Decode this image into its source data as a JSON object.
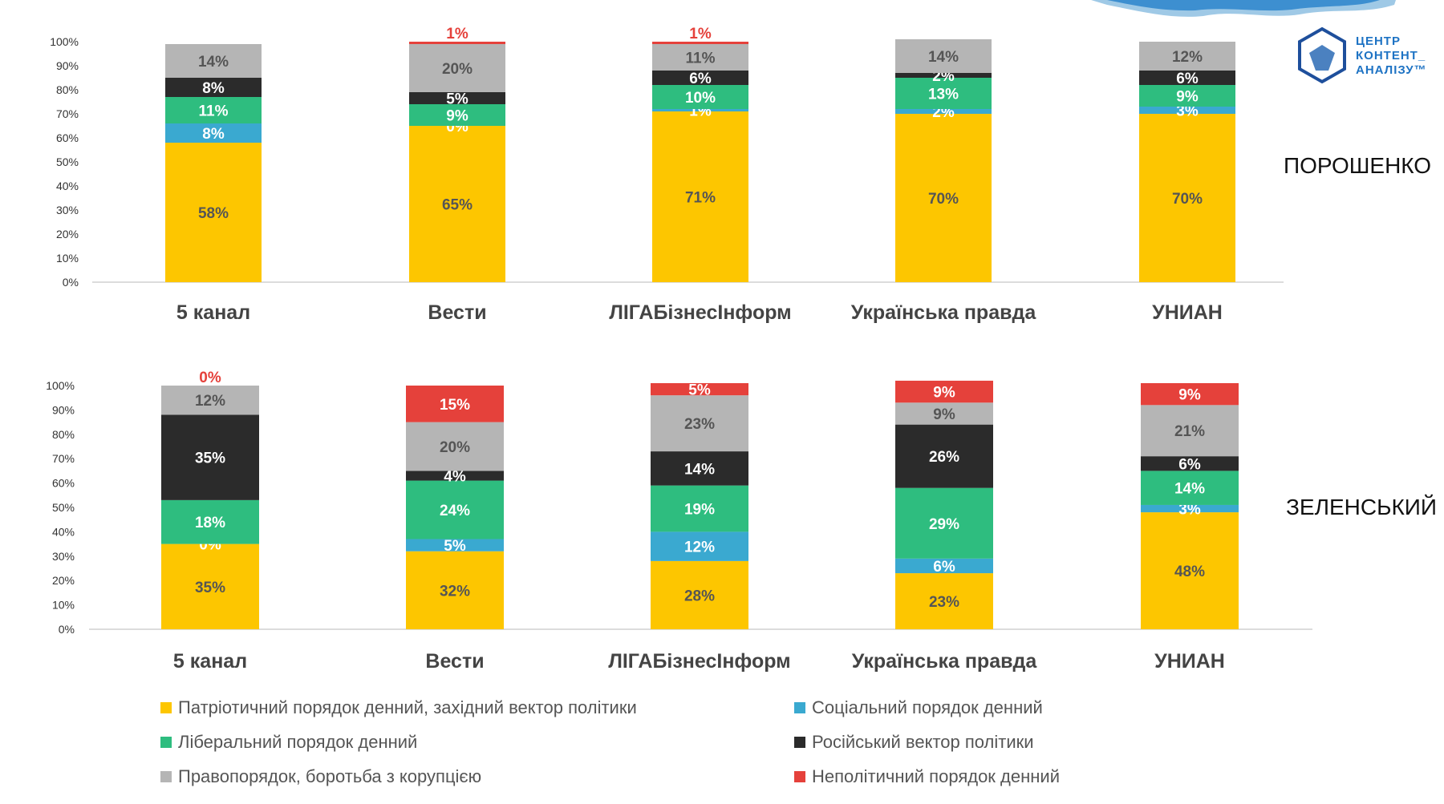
{
  "colors": {
    "patriotic": "#fdc600",
    "social": "#3aa9d0",
    "liberal": "#2ebd7f",
    "russian": "#2b2b2b",
    "law": "#b5b5b5",
    "nonpolitical": "#e5413b"
  },
  "logo": {
    "icon": "shield-logo-icon",
    "lines": [
      "ЦЕНТР",
      "КОНТЕНТ_",
      "АНАЛІЗУ™"
    ]
  },
  "legend": {
    "items": [
      {
        "key": "patriotic",
        "label": "Патріотичний порядок денний, західний вектор політики"
      },
      {
        "key": "social",
        "label": "Соціальний порядок денний"
      },
      {
        "key": "liberal",
        "label": "Ліберальний порядок денний"
      },
      {
        "key": "russian",
        "label": "Російський вектор політики"
      },
      {
        "key": "law",
        "label": "Правопорядок, боротьба з корупцією"
      },
      {
        "key": "nonpolitical",
        "label": "Неполітичний порядок денний"
      }
    ]
  },
  "chart_data": [
    {
      "type": "bar",
      "stacked": true,
      "title": "ПОРОШЕНКО",
      "categories": [
        "5 канал",
        "Вести",
        "ЛІГАБізнесІнформ",
        "Українська правда",
        "УНИАН"
      ],
      "ylim": [
        0,
        100
      ],
      "yticks": [
        "0%",
        "10%",
        "20%",
        "30%",
        "40%",
        "50%",
        "60%",
        "70%",
        "80%",
        "90%",
        "100%"
      ],
      "series": [
        {
          "key": "patriotic",
          "name": "Патріотичний порядок денний, західний вектор політики",
          "values": [
            58,
            65,
            71,
            70,
            70
          ]
        },
        {
          "key": "social",
          "name": "Соціальний порядок денний",
          "values": [
            8,
            0,
            1,
            2,
            3
          ]
        },
        {
          "key": "liberal",
          "name": "Ліберальний порядок денний",
          "values": [
            11,
            9,
            10,
            13,
            9
          ]
        },
        {
          "key": "russian",
          "name": "Російський вектор політики",
          "values": [
            8,
            5,
            6,
            2,
            6
          ]
        },
        {
          "key": "law",
          "name": "Правопорядок, боротьба з корупцією",
          "values": [
            14,
            20,
            11,
            14,
            12
          ]
        },
        {
          "key": "nonpolitical",
          "name": "Неполітичний порядок денний",
          "values": [
            0,
            1,
            1,
            0,
            0
          ]
        }
      ]
    },
    {
      "type": "bar",
      "stacked": true,
      "title": "ЗЕЛЕНСЬКИЙ",
      "categories": [
        "5 канал",
        "Вести",
        "ЛІГАБізнесІнформ",
        "Українська правда",
        "УНИАН"
      ],
      "ylim": [
        0,
        100
      ],
      "yticks": [
        "0%",
        "10%",
        "20%",
        "30%",
        "40%",
        "50%",
        "60%",
        "70%",
        "80%",
        "90%",
        "100%"
      ],
      "series": [
        {
          "key": "patriotic",
          "name": "Патріотичний порядок денний, західний вектор політики",
          "values": [
            35,
            32,
            28,
            23,
            48
          ]
        },
        {
          "key": "social",
          "name": "Соціальний порядок денний",
          "values": [
            0,
            5,
            12,
            6,
            3
          ]
        },
        {
          "key": "liberal",
          "name": "Ліберальний порядок денний",
          "values": [
            18,
            24,
            19,
            29,
            14
          ]
        },
        {
          "key": "russian",
          "name": "Російський вектор політики",
          "values": [
            35,
            4,
            14,
            26,
            6
          ]
        },
        {
          "key": "law",
          "name": "Правопорядок, боротьба з корупцією",
          "values": [
            12,
            20,
            23,
            9,
            21
          ]
        },
        {
          "key": "nonpolitical",
          "name": "Неполітичний порядок денний",
          "values": [
            0,
            15,
            5,
            9,
            9
          ]
        }
      ]
    }
  ]
}
